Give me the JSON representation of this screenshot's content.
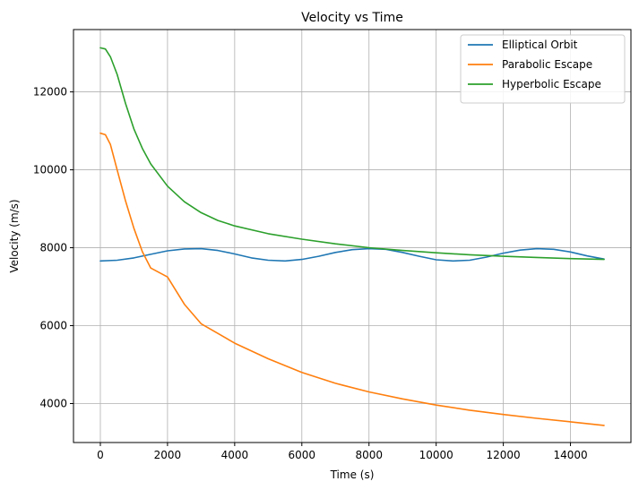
{
  "chart_data": {
    "type": "line",
    "title": "Velocity vs Time",
    "xlabel": "Time (s)",
    "ylabel": "Velocity (m/s)",
    "xlim": [
      -800,
      15800
    ],
    "ylim": [
      3000,
      13600
    ],
    "xticks": [
      0,
      2000,
      4000,
      6000,
      8000,
      10000,
      12000,
      14000
    ],
    "yticks": [
      4000,
      6000,
      8000,
      10000,
      12000
    ],
    "grid": true,
    "legend_position": "top-right",
    "series": [
      {
        "name": "Elliptical Orbit",
        "color": "#1f77b4",
        "x": [
          0,
          500,
          1000,
          1500,
          2000,
          2500,
          3000,
          3500,
          4000,
          4500,
          5000,
          5500,
          6000,
          6500,
          7000,
          7500,
          8000,
          8500,
          9000,
          9500,
          10000,
          10500,
          11000,
          11500,
          12000,
          12500,
          13000,
          13500,
          14000,
          14500,
          15000
        ],
        "values": [
          7660,
          7680,
          7740,
          7830,
          7920,
          7970,
          7975,
          7930,
          7840,
          7740,
          7680,
          7660,
          7700,
          7780,
          7880,
          7950,
          7975,
          7960,
          7880,
          7780,
          7690,
          7660,
          7680,
          7760,
          7860,
          7940,
          7975,
          7960,
          7890,
          7790,
          7710
        ]
      },
      {
        "name": "Parabolic Escape",
        "color": "#ff7f0e",
        "x": [
          0,
          150,
          300,
          500,
          750,
          1000,
          1250,
          1500,
          2000,
          2500,
          3000,
          3500,
          4000,
          5000,
          6000,
          7000,
          8000,
          9000,
          10000,
          11000,
          12000,
          13000,
          14000,
          15000
        ],
        "values": [
          10940,
          10900,
          10650,
          10000,
          9200,
          8500,
          7900,
          7480,
          7250,
          6550,
          6050,
          5800,
          5550,
          5150,
          4800,
          4520,
          4300,
          4120,
          3960,
          3830,
          3720,
          3620,
          3530,
          3440
        ]
      },
      {
        "name": "Hyperbolic Escape",
        "color": "#2ca02c",
        "x": [
          0,
          150,
          300,
          500,
          750,
          1000,
          1250,
          1500,
          2000,
          2500,
          3000,
          3500,
          4000,
          5000,
          6000,
          7000,
          8000,
          9000,
          10000,
          11000,
          12000,
          13000,
          14000,
          15000
        ],
        "values": [
          13130,
          13100,
          12900,
          12450,
          11700,
          11050,
          10550,
          10150,
          9580,
          9180,
          8900,
          8700,
          8560,
          8360,
          8220,
          8100,
          8000,
          7930,
          7870,
          7820,
          7780,
          7750,
          7720,
          7700
        ]
      }
    ]
  }
}
